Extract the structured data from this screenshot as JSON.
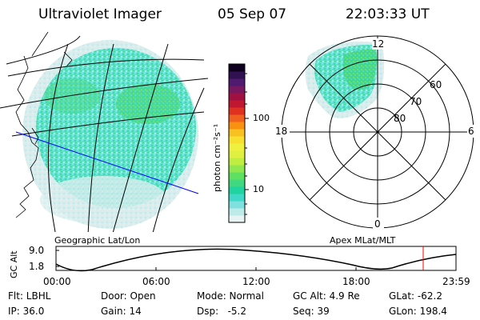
{
  "header": {
    "instrument": "Ultraviolet Imager",
    "date": "05 Sep 07",
    "time": "22:03:33 UT"
  },
  "colorbar": {
    "unit_label": "photon cm⁻²s⁻¹",
    "ticks": [
      "100",
      "10"
    ],
    "colors": [
      "#e8f4f4",
      "#bfeaea",
      "#7fe0e0",
      "#40d8c8",
      "#20d4a0",
      "#40d880",
      "#60e060",
      "#90e850",
      "#c0ee40",
      "#e0f040",
      "#f0f040",
      "#f8e030",
      "#f8c020",
      "#f89010",
      "#f06020",
      "#e03020",
      "#c01830",
      "#a01040",
      "#781860",
      "#501a70",
      "#301050",
      "#100020"
    ]
  },
  "geo_panel": {
    "label": "Geographic Lat/Lon"
  },
  "polar_panel": {
    "label": "Apex MLat/MLT",
    "mlt_labels": {
      "top": "12",
      "left": "18",
      "right": "6",
      "bottom": "0"
    },
    "mlat_labels": [
      "60",
      "70",
      "80"
    ]
  },
  "altitude_plot": {
    "axis_label": "GC Alt",
    "y_ticks": [
      "9.0",
      "1.8"
    ],
    "x_ticks": [
      "00:00",
      "06:00",
      "12:00",
      "18:00",
      "23:59"
    ],
    "current_marker_time": "22:03"
  },
  "footer": {
    "filter": "Flt: LBHL",
    "door": "Door: Open",
    "mode": "Mode: Normal",
    "gc_alt": "GC Alt: 4.9 Re",
    "glat": "GLat: -62.2",
    "ip": "IP: 36.0",
    "gain": "Gain: 14",
    "dsp": "Dsp:   -5.2",
    "seq": "Seq: 39",
    "glon": "GLon: 198.4"
  }
}
